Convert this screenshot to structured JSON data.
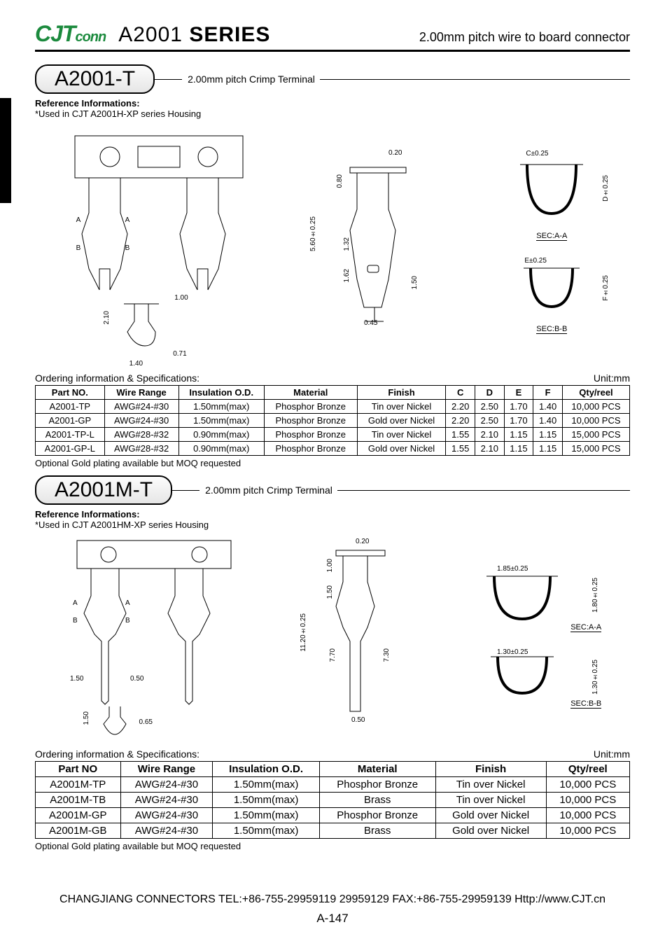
{
  "header": {
    "logo_main": "CJT",
    "logo_sub": "conn",
    "series": "A2001",
    "series_word": "SERIES",
    "desc": "2.00mm pitch wire to board connector"
  },
  "section1": {
    "badge": "A2001-T",
    "badge_desc": "2.00mm pitch Crimp Terminal",
    "ref_title": "Reference Informations:",
    "ref_note": "*Used in CJT A2001H-XP series Housing",
    "dims": {
      "d1": "0.20",
      "d2": "0.80",
      "d3": "5.60±0.25",
      "d4": "1.32",
      "d5": "1.62",
      "d6": "0.45",
      "d7": "1.50",
      "d8": "C±0.25",
      "d9": "D±0.25",
      "d10": "E±0.25",
      "d11": "F±0.25",
      "d12": "1.00",
      "d13": "2.10",
      "d14": "0.71",
      "d15": "1.40",
      "labA": "A",
      "labB": "B",
      "secAA": "SEC:A-A",
      "secBB": "SEC:B-B"
    },
    "order_title": "Ordering information & Specifications:",
    "unit": "Unit:mm",
    "table": {
      "columns": [
        "Part NO.",
        "Wire Range",
        "Insulation O.D.",
        "Material",
        "Finish",
        "C",
        "D",
        "E",
        "F",
        "Qty/reel"
      ],
      "rows": [
        [
          "A2001-TP",
          "AWG#24-#30",
          "1.50mm(max)",
          "Phosphor Bronze",
          "Tin over Nickel",
          "2.20",
          "2.50",
          "1.70",
          "1.40",
          "10,000 PCS"
        ],
        [
          "A2001-GP",
          "AWG#24-#30",
          "1.50mm(max)",
          "Phosphor Bronze",
          "Gold over Nickel",
          "2.20",
          "2.50",
          "1.70",
          "1.40",
          "10,000 PCS"
        ],
        [
          "A2001-TP-L",
          "AWG#28-#32",
          "0.90mm(max)",
          "Phosphor Bronze",
          "Tin over Nickel",
          "1.55",
          "2.10",
          "1.15",
          "1.15",
          "15,000 PCS"
        ],
        [
          "A2001-GP-L",
          "AWG#28-#32",
          "0.90mm(max)",
          "Phosphor Bronze",
          "Gold over Nickel",
          "1.55",
          "2.10",
          "1.15",
          "1.15",
          "15,000 PCS"
        ]
      ]
    },
    "opt_note": "Optional Gold plating available but MOQ requested"
  },
  "section2": {
    "badge": "A2001M-T",
    "badge_desc": "2.00mm pitch Crimp Terminal",
    "ref_title": "Reference Informations:",
    "ref_note": "*Used in CJT A2001HM-XP series Housing",
    "dims": {
      "d1": "0.20",
      "d2": "1.00",
      "d3": "1.50",
      "d4": "11.20±0.25",
      "d5": "7.70",
      "d6": "7.30",
      "d7": "0.50",
      "d8": "1.50",
      "d9": "0.50",
      "d10": "0.65",
      "d11": "1.50",
      "d12": "1.85±0.25",
      "d13": "1.80±0.25",
      "d14": "1.30±0.25",
      "d15": "1.30±0.25",
      "labA": "A",
      "labB": "B",
      "secAA": "SEC:A-A",
      "secBB": "SEC:B-B"
    },
    "order_title": "Ordering information & Specifications:",
    "unit": "Unit:mm",
    "table": {
      "columns": [
        "Part NO",
        "Wire Range",
        "Insulation O.D.",
        "Material",
        "Finish",
        "Qty/reel"
      ],
      "rows": [
        [
          "A2001M-TP",
          "AWG#24-#30",
          "1.50mm(max)",
          "Phosphor Bronze",
          "Tin over Nickel",
          "10,000 PCS"
        ],
        [
          "A2001M-TB",
          "AWG#24-#30",
          "1.50mm(max)",
          "Brass",
          "Tin over Nickel",
          "10,000 PCS"
        ],
        [
          "A2001M-GP",
          "AWG#24-#30",
          "1.50mm(max)",
          "Phosphor Bronze",
          "Gold over Nickel",
          "10,000 PCS"
        ],
        [
          "A2001M-GB",
          "AWG#24-#30",
          "1.50mm(max)",
          "Brass",
          "Gold over Nickel",
          "10,000 PCS"
        ]
      ]
    },
    "opt_note": "Optional Gold plating available but MOQ requested"
  },
  "footer": {
    "line": "CHANGJIANG CONNECTORS  TEL:+86-755-29959119 29959129  FAX:+86-755-29959139 Http://www.CJT.cn",
    "page": "A-147"
  },
  "styles": {
    "page_bg": "#ffffff",
    "text_color": "#000000",
    "logo_color": "#1b8a3d",
    "border_color": "#000000"
  }
}
